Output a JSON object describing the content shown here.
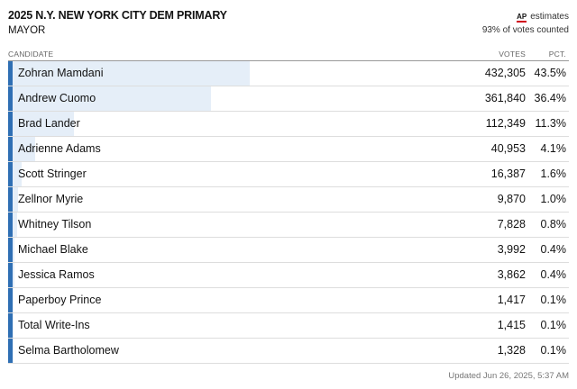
{
  "header": {
    "title": "2025 N.Y. NEW YORK CITY DEM PRIMARY",
    "subtitle": "MAYOR",
    "ap_logo": "AP",
    "estimates_label": "estimates",
    "counted_label": "93% of votes counted"
  },
  "table": {
    "col_candidate": "CANDIDATE",
    "col_votes": "VOTES",
    "col_pct": "PCT.",
    "rows": [
      {
        "name": "Zohran Mamdani",
        "votes": "432,305",
        "pct": "43.5%",
        "share": 43.5
      },
      {
        "name": "Andrew Cuomo",
        "votes": "361,840",
        "pct": "36.4%",
        "share": 36.4
      },
      {
        "name": "Brad Lander",
        "votes": "112,349",
        "pct": "11.3%",
        "share": 11.3
      },
      {
        "name": "Adrienne Adams",
        "votes": "40,953",
        "pct": "4.1%",
        "share": 4.1
      },
      {
        "name": "Scott Stringer",
        "votes": "16,387",
        "pct": "1.6%",
        "share": 1.6
      },
      {
        "name": "Zellnor Myrie",
        "votes": "9,870",
        "pct": "1.0%",
        "share": 1.0
      },
      {
        "name": "Whitney Tilson",
        "votes": "7,828",
        "pct": "0.8%",
        "share": 0.8
      },
      {
        "name": "Michael Blake",
        "votes": "3,992",
        "pct": "0.4%",
        "share": 0.4
      },
      {
        "name": "Jessica Ramos",
        "votes": "3,862",
        "pct": "0.4%",
        "share": 0.4
      },
      {
        "name": "Paperboy Prince",
        "votes": "1,417",
        "pct": "0.1%",
        "share": 0.1
      },
      {
        "name": "Total Write-Ins",
        "votes": "1,415",
        "pct": "0.1%",
        "share": 0.1
      },
      {
        "name": "Selma Bartholomew",
        "votes": "1,328",
        "pct": "0.1%",
        "share": 0.1
      }
    ]
  },
  "footer": {
    "updated": "Updated Jun 26, 2025, 5:37 AM"
  },
  "colors": {
    "stripe": "#2f6fb4",
    "bar": "#e5eef8",
    "ap_red": "#d0021b"
  }
}
